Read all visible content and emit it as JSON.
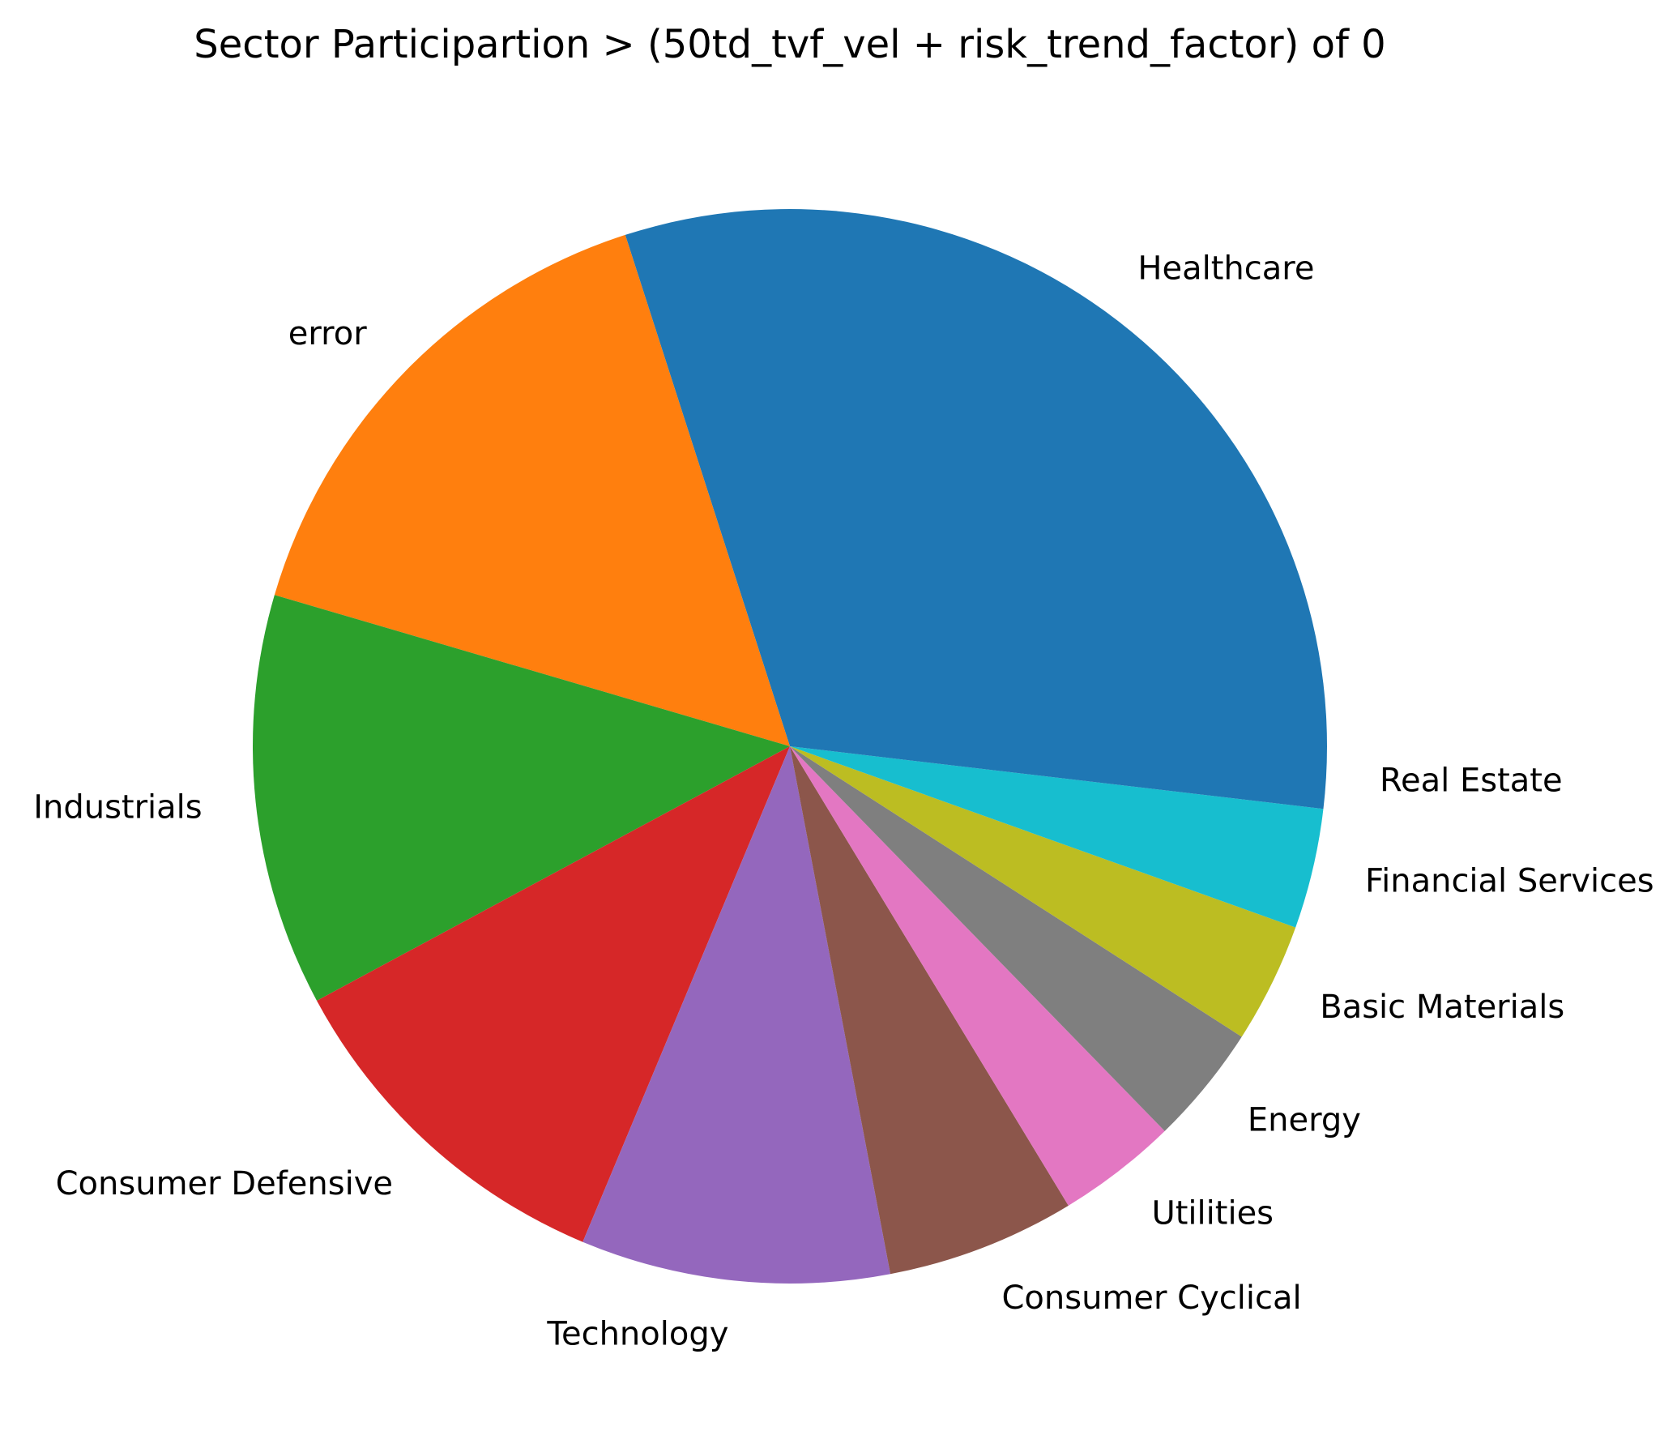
{
  "chart_data": {
    "type": "pie",
    "title": "Sector Participartion > (50td_tvf_vel + risk_trend_factor) of 0",
    "start_angle_deg": 0,
    "direction": "counterclockwise",
    "legend": "none",
    "slices": [
      {
        "label": "Healthcare",
        "value": 29.0,
        "color": "#1f77b4"
      },
      {
        "label": "error",
        "value": 15.0,
        "color": "#ff7f0e"
      },
      {
        "label": "Industrials",
        "value": 12.0,
        "color": "#2ca02c"
      },
      {
        "label": "Consumer Defensive",
        "value": 10.5,
        "color": "#d62728"
      },
      {
        "label": "Technology",
        "value": 9.0,
        "color": "#9467bd"
      },
      {
        "label": "Consumer Cyclical",
        "value": 5.5,
        "color": "#8c564b"
      },
      {
        "label": "Utilities",
        "value": 3.5,
        "color": "#e377c2"
      },
      {
        "label": "Energy",
        "value": 3.5,
        "color": "#7f7f7f"
      },
      {
        "label": "Basic Materials",
        "value": 3.5,
        "color": "#bcbd22"
      },
      {
        "label": "Financial Services",
        "value": 3.5,
        "color": "#17becf"
      },
      {
        "label": "Real Estate",
        "value": 1.8,
        "color": "#1f77b4"
      }
    ]
  }
}
